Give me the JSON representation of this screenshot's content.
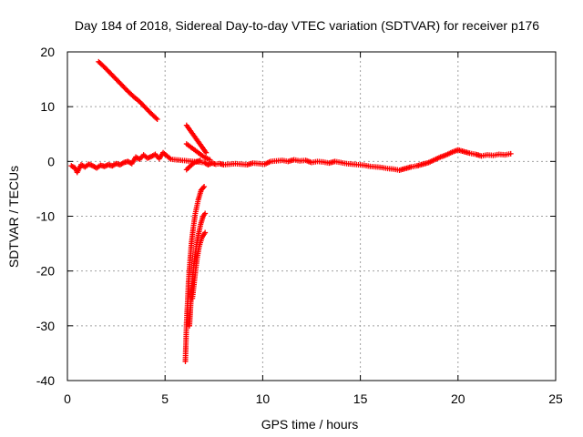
{
  "chart_data": {
    "type": "scatter",
    "title": "Day 184 of 2018, Sidereal Day-to-day VTEC variation (SDTVAR) for receiver p176",
    "xlabel": "GPS time / hours",
    "ylabel": "SDTVAR / TECUs",
    "xlim": [
      0,
      25
    ],
    "ylim": [
      -40,
      20
    ],
    "xticks": [
      "0",
      "5",
      "10",
      "15",
      "20",
      "25"
    ],
    "yticks": [
      "20",
      "10",
      "0",
      "-10",
      "-20",
      "-30",
      "-40"
    ],
    "grid": true,
    "marker": "+",
    "series": [
      {
        "name": "main-track",
        "color": "#ff0000",
        "points": [
          [
            0.2,
            -0.8
          ],
          [
            0.4,
            -1.2
          ],
          [
            0.5,
            -2.0
          ],
          [
            0.7,
            -0.6
          ],
          [
            0.9,
            -1.0
          ],
          [
            1.1,
            -0.5
          ],
          [
            1.3,
            -0.8
          ],
          [
            1.5,
            -1.2
          ],
          [
            1.7,
            -0.7
          ],
          [
            1.9,
            -0.9
          ],
          [
            2.1,
            -0.6
          ],
          [
            2.3,
            -0.8
          ],
          [
            2.5,
            -0.4
          ],
          [
            2.7,
            -0.6
          ],
          [
            2.9,
            -0.2
          ],
          [
            3.1,
            0.0
          ],
          [
            3.3,
            -0.4
          ],
          [
            3.5,
            0.8
          ],
          [
            3.7,
            0.4
          ],
          [
            3.9,
            1.2
          ],
          [
            4.1,
            0.6
          ],
          [
            4.3,
            0.9
          ],
          [
            4.5,
            1.3
          ],
          [
            4.7,
            0.5
          ],
          [
            4.9,
            1.6
          ],
          [
            5.1,
            1.0
          ],
          [
            5.3,
            0.4
          ],
          [
            7.0,
            -0.2
          ],
          [
            7.2,
            -0.6
          ],
          [
            7.4,
            -0.3
          ],
          [
            7.6,
            -0.5
          ],
          [
            7.8,
            -0.4
          ],
          [
            8.0,
            -0.6
          ],
          [
            8.3,
            -0.5
          ],
          [
            8.6,
            -0.4
          ],
          [
            8.9,
            -0.5
          ],
          [
            9.2,
            -0.6
          ],
          [
            9.5,
            -0.3
          ],
          [
            9.8,
            -0.4
          ],
          [
            10.1,
            -0.5
          ],
          [
            10.4,
            0.0
          ],
          [
            10.7,
            0.1
          ],
          [
            11.0,
            0.2
          ],
          [
            11.3,
            0.0
          ],
          [
            11.6,
            0.3
          ],
          [
            11.9,
            0.1
          ],
          [
            12.2,
            0.2
          ],
          [
            12.5,
            -0.2
          ],
          [
            12.8,
            0.0
          ],
          [
            13.1,
            -0.1
          ],
          [
            13.4,
            -0.3
          ],
          [
            13.7,
            0.0
          ],
          [
            14.0,
            -0.2
          ],
          [
            14.3,
            -0.4
          ],
          [
            14.6,
            -0.5
          ],
          [
            14.9,
            -0.6
          ],
          [
            15.2,
            -0.7
          ],
          [
            15.5,
            -0.9
          ],
          [
            15.8,
            -1.0
          ],
          [
            16.1,
            -1.1
          ],
          [
            16.4,
            -1.3
          ],
          [
            16.7,
            -1.4
          ],
          [
            17.0,
            -1.6
          ],
          [
            17.3,
            -1.3
          ],
          [
            17.6,
            -1.0
          ],
          [
            17.9,
            -0.8
          ],
          [
            18.2,
            -0.5
          ],
          [
            18.5,
            -0.2
          ],
          [
            18.8,
            0.3
          ],
          [
            19.1,
            0.8
          ],
          [
            19.4,
            1.2
          ],
          [
            19.7,
            1.7
          ],
          [
            20.0,
            2.1
          ],
          [
            20.3,
            1.8
          ],
          [
            20.6,
            1.5
          ],
          [
            20.9,
            1.3
          ],
          [
            21.2,
            1.0
          ],
          [
            21.5,
            1.2
          ],
          [
            21.8,
            1.1
          ],
          [
            22.1,
            1.3
          ],
          [
            22.4,
            1.2
          ],
          [
            22.7,
            1.4
          ]
        ]
      },
      {
        "name": "descending-arc",
        "color": "#ff0000",
        "points": [
          [
            1.6,
            18.2
          ],
          [
            1.9,
            17.2
          ],
          [
            2.2,
            16.1
          ],
          [
            2.5,
            15.0
          ],
          [
            2.8,
            13.9
          ],
          [
            3.1,
            12.8
          ],
          [
            3.4,
            11.8
          ],
          [
            3.7,
            10.9
          ],
          [
            4.0,
            9.8
          ],
          [
            4.3,
            8.7
          ],
          [
            4.6,
            7.7
          ]
        ]
      },
      {
        "name": "rising-arc-a",
        "color": "#ff0000",
        "points": [
          [
            6.1,
            6.6
          ],
          [
            6.3,
            5.6
          ],
          [
            6.5,
            4.6
          ],
          [
            6.7,
            3.6
          ],
          [
            6.9,
            2.6
          ],
          [
            7.1,
            1.6
          ]
        ]
      },
      {
        "name": "rising-arc-b",
        "color": "#ff0000",
        "points": [
          [
            6.1,
            3.2
          ],
          [
            6.4,
            2.4
          ],
          [
            6.7,
            1.6
          ],
          [
            7.0,
            0.8
          ],
          [
            7.3,
            0.3
          ]
        ]
      },
      {
        "name": "hook-a",
        "color": "#ff0000",
        "points": [
          [
            6.1,
            -1.5
          ],
          [
            6.3,
            -0.8
          ],
          [
            6.5,
            -0.2
          ],
          [
            6.8,
            0.2
          ]
        ]
      },
      {
        "name": "plunge-curve-1",
        "color": "#ff0000",
        "points": [
          [
            6.04,
            -36.5
          ],
          [
            6.07,
            -33.0
          ],
          [
            6.1,
            -29.5
          ],
          [
            6.15,
            -26.0
          ],
          [
            6.2,
            -22.0
          ],
          [
            6.27,
            -18.5
          ],
          [
            6.35,
            -15.0
          ],
          [
            6.45,
            -12.0
          ],
          [
            6.55,
            -9.5
          ],
          [
            6.7,
            -7.0
          ],
          [
            6.85,
            -5.2
          ],
          [
            7.0,
            -4.6
          ]
        ]
      },
      {
        "name": "plunge-curve-2",
        "color": "#ff0000",
        "points": [
          [
            6.25,
            -30.0
          ],
          [
            6.3,
            -27.0
          ],
          [
            6.35,
            -24.0
          ],
          [
            6.42,
            -21.0
          ],
          [
            6.5,
            -18.0
          ],
          [
            6.6,
            -15.5
          ],
          [
            6.7,
            -13.5
          ],
          [
            6.82,
            -11.5
          ],
          [
            6.95,
            -10.0
          ],
          [
            7.05,
            -9.5
          ]
        ]
      },
      {
        "name": "plunge-curve-3",
        "color": "#ff0000",
        "points": [
          [
            6.4,
            -25.0
          ],
          [
            6.48,
            -22.5
          ],
          [
            6.56,
            -20.0
          ],
          [
            6.65,
            -17.5
          ],
          [
            6.75,
            -15.5
          ],
          [
            6.9,
            -13.8
          ],
          [
            7.05,
            -13.0
          ]
        ]
      }
    ]
  }
}
